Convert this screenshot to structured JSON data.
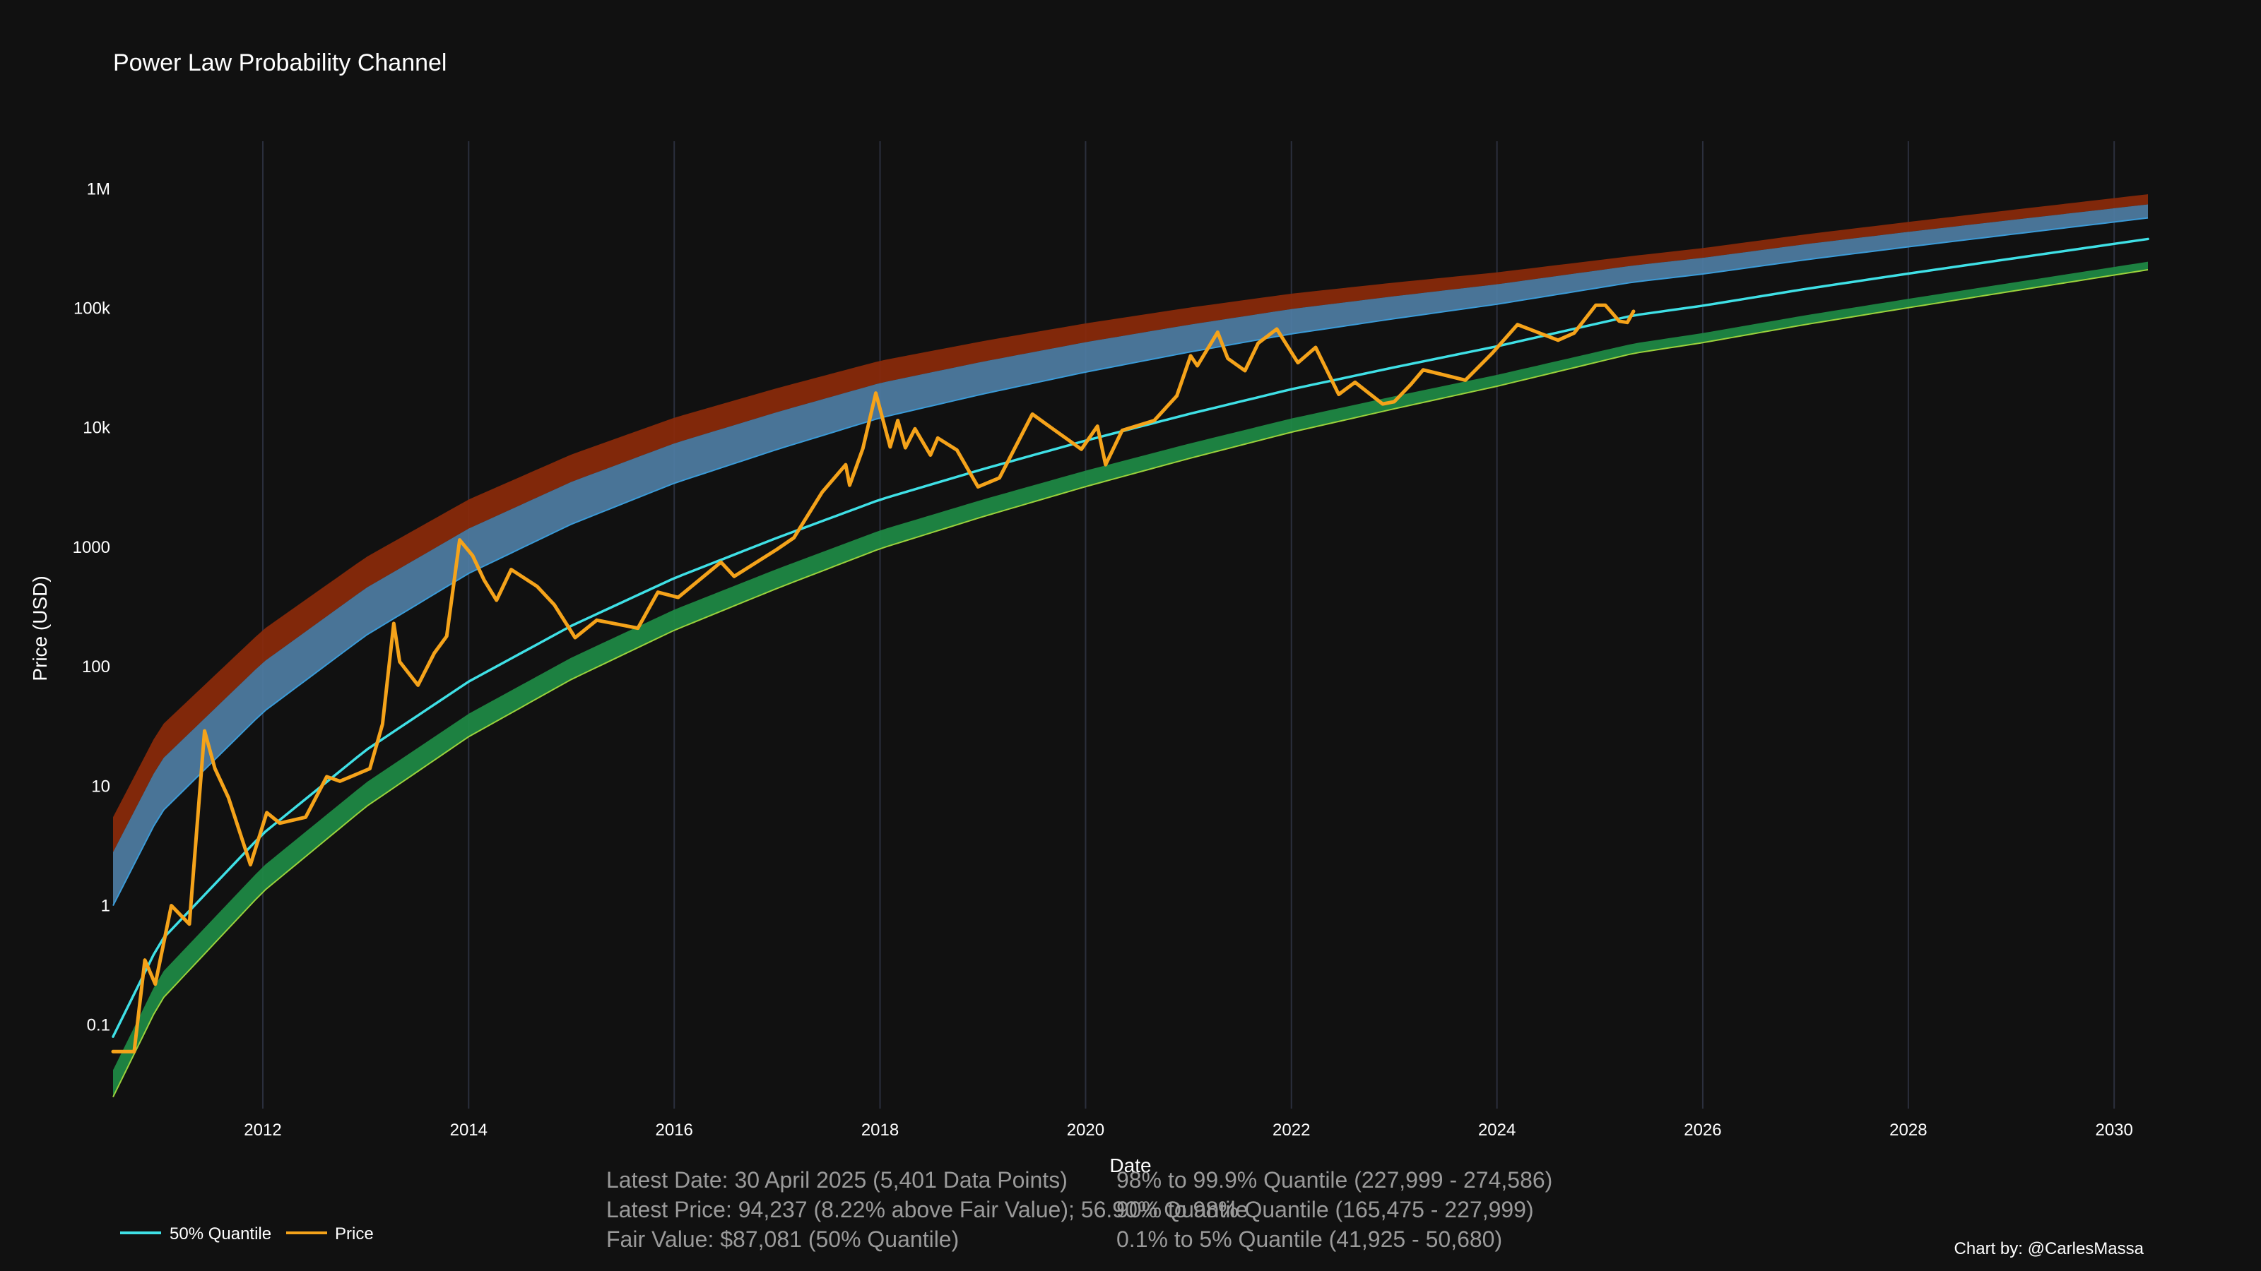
{
  "chart_data": {
    "type": "line",
    "title": "Power Law Probability Channel",
    "xlabel": "Date",
    "ylabel": "Price (USD)",
    "y_scale": "log",
    "xlim": [
      "2010-07-18",
      "2030-05-01"
    ],
    "ylim": [
      0.02,
      2500000
    ],
    "x_ticks": [
      "2012",
      "2014",
      "2016",
      "2018",
      "2020",
      "2022",
      "2024",
      "2026",
      "2028",
      "2030"
    ],
    "y_ticks": [
      {
        "value": 0.1,
        "label": "0.1"
      },
      {
        "value": 1,
        "label": "1"
      },
      {
        "value": 10,
        "label": "10"
      },
      {
        "value": 100,
        "label": "100"
      },
      {
        "value": 1000,
        "label": "1000"
      },
      {
        "value": 10000,
        "label": "10k"
      },
      {
        "value": 100000,
        "label": "100k"
      },
      {
        "value": 1000000,
        "label": "1M"
      }
    ],
    "grid": "vertical",
    "legend_position": "bottom-left",
    "quantile_bands": [
      {
        "label": "98% to 99.9% Quantile",
        "color": "#8B2A0A",
        "lower": [
          {
            "x": "2010-07-18",
            "y": 2.8
          },
          {
            "x": "2025-04-30",
            "y": 227999
          },
          {
            "x": "2030-05-01",
            "y": 740000
          }
        ],
        "upper": [
          {
            "x": "2010-07-18",
            "y": 5.5
          },
          {
            "x": "2025-04-30",
            "y": 274586
          },
          {
            "x": "2030-05-01",
            "y": 900000
          }
        ]
      },
      {
        "label": "90% to 98% Quantile",
        "color": "#4E7DA3",
        "lower": [
          {
            "x": "2010-07-18",
            "y": 1.0
          },
          {
            "x": "2025-04-30",
            "y": 165475
          },
          {
            "x": "2030-05-01",
            "y": 570000
          }
        ],
        "upper": [
          {
            "x": "2010-07-18",
            "y": 2.8
          },
          {
            "x": "2025-04-30",
            "y": 227999
          },
          {
            "x": "2030-05-01",
            "y": 740000
          }
        ]
      },
      {
        "label": "0.1% to 5% Quantile",
        "color": "#1E8B45",
        "lower": [
          {
            "x": "2010-07-18",
            "y": 0.025
          },
          {
            "x": "2025-04-30",
            "y": 41925
          },
          {
            "x": "2030-05-01",
            "y": 210000
          }
        ],
        "upper": [
          {
            "x": "2010-07-18",
            "y": 0.042
          },
          {
            "x": "2025-04-30",
            "y": 50680
          },
          {
            "x": "2030-05-01",
            "y": 245000
          }
        ]
      }
    ],
    "series": [
      {
        "name": "50% Quantile",
        "color": "#3FE0E6",
        "points": [
          {
            "x": "2010-07-18",
            "y": 0.08
          },
          {
            "x": "2011-01-01",
            "y": 0.5
          },
          {
            "x": "2012-01-01",
            "y": 4
          },
          {
            "x": "2013-01-01",
            "y": 20
          },
          {
            "x": "2014-01-01",
            "y": 75
          },
          {
            "x": "2015-01-01",
            "y": 220
          },
          {
            "x": "2016-01-01",
            "y": 550
          },
          {
            "x": "2017-01-01",
            "y": 1200
          },
          {
            "x": "2018-01-01",
            "y": 2500
          },
          {
            "x": "2019-01-01",
            "y": 4500
          },
          {
            "x": "2020-01-01",
            "y": 7800
          },
          {
            "x": "2021-01-01",
            "y": 13000
          },
          {
            "x": "2022-01-01",
            "y": 21000
          },
          {
            "x": "2023-01-01",
            "y": 32000
          },
          {
            "x": "2024-01-01",
            "y": 48000
          },
          {
            "x": "2025-04-30",
            "y": 87081
          },
          {
            "x": "2026-01-01",
            "y": 105000
          },
          {
            "x": "2027-01-01",
            "y": 145000
          },
          {
            "x": "2028-01-01",
            "y": 195000
          },
          {
            "x": "2029-01-01",
            "y": 260000
          },
          {
            "x": "2030-05-01",
            "y": 380000
          }
        ]
      },
      {
        "name": "Price",
        "color": "#F5A31A",
        "points": [
          {
            "x": "2010-07-18",
            "y": 0.06
          },
          {
            "x": "2010-10-01",
            "y": 0.06
          },
          {
            "x": "2010-11-08",
            "y": 0.35
          },
          {
            "x": "2010-12-15",
            "y": 0.22
          },
          {
            "x": "2011-02-10",
            "y": 1.0
          },
          {
            "x": "2011-04-15",
            "y": 0.7
          },
          {
            "x": "2011-06-08",
            "y": 29
          },
          {
            "x": "2011-07-15",
            "y": 14
          },
          {
            "x": "2011-09-01",
            "y": 8
          },
          {
            "x": "2011-11-18",
            "y": 2.2
          },
          {
            "x": "2012-01-15",
            "y": 6
          },
          {
            "x": "2012-03-01",
            "y": 4.9
          },
          {
            "x": "2012-06-01",
            "y": 5.5
          },
          {
            "x": "2012-08-15",
            "y": 12
          },
          {
            "x": "2012-10-01",
            "y": 11
          },
          {
            "x": "2013-01-15",
            "y": 14
          },
          {
            "x": "2013-03-01",
            "y": 33
          },
          {
            "x": "2013-04-10",
            "y": 230
          },
          {
            "x": "2013-05-01",
            "y": 110
          },
          {
            "x": "2013-07-05",
            "y": 70
          },
          {
            "x": "2013-09-01",
            "y": 130
          },
          {
            "x": "2013-10-15",
            "y": 180
          },
          {
            "x": "2013-11-30",
            "y": 1150
          },
          {
            "x": "2014-01-15",
            "y": 850
          },
          {
            "x": "2014-02-25",
            "y": 530
          },
          {
            "x": "2014-04-10",
            "y": 360
          },
          {
            "x": "2014-06-01",
            "y": 650
          },
          {
            "x": "2014-09-01",
            "y": 470
          },
          {
            "x": "2014-11-01",
            "y": 330
          },
          {
            "x": "2015-01-14",
            "y": 175
          },
          {
            "x": "2015-04-01",
            "y": 245
          },
          {
            "x": "2015-08-25",
            "y": 210
          },
          {
            "x": "2015-11-04",
            "y": 420
          },
          {
            "x": "2016-01-15",
            "y": 380
          },
          {
            "x": "2016-06-15",
            "y": 750
          },
          {
            "x": "2016-08-01",
            "y": 570
          },
          {
            "x": "2016-12-31",
            "y": 960
          },
          {
            "x": "2017-03-01",
            "y": 1200
          },
          {
            "x": "2017-06-10",
            "y": 2900
          },
          {
            "x": "2017-09-01",
            "y": 4900
          },
          {
            "x": "2017-09-15",
            "y": 3300
          },
          {
            "x": "2017-11-01",
            "y": 6700
          },
          {
            "x": "2017-12-17",
            "y": 19500
          },
          {
            "x": "2018-02-06",
            "y": 6900
          },
          {
            "x": "2018-03-05",
            "y": 11500
          },
          {
            "x": "2018-04-01",
            "y": 6800
          },
          {
            "x": "2018-05-05",
            "y": 9800
          },
          {
            "x": "2018-06-29",
            "y": 5900
          },
          {
            "x": "2018-07-25",
            "y": 8200
          },
          {
            "x": "2018-10-01",
            "y": 6500
          },
          {
            "x": "2018-12-15",
            "y": 3200
          },
          {
            "x": "2019-03-01",
            "y": 3800
          },
          {
            "x": "2019-06-26",
            "y": 13000
          },
          {
            "x": "2019-09-01",
            "y": 10000
          },
          {
            "x": "2019-12-17",
            "y": 6600
          },
          {
            "x": "2020-02-12",
            "y": 10300
          },
          {
            "x": "2020-03-12",
            "y": 4900
          },
          {
            "x": "2020-05-10",
            "y": 9500
          },
          {
            "x": "2020-09-01",
            "y": 11500
          },
          {
            "x": "2020-11-20",
            "y": 18500
          },
          {
            "x": "2021-01-08",
            "y": 40000
          },
          {
            "x": "2021-02-01",
            "y": 33000
          },
          {
            "x": "2021-04-14",
            "y": 63000
          },
          {
            "x": "2021-05-20",
            "y": 38000
          },
          {
            "x": "2021-07-20",
            "y": 30000
          },
          {
            "x": "2021-09-05",
            "y": 51000
          },
          {
            "x": "2021-11-10",
            "y": 67000
          },
          {
            "x": "2022-01-24",
            "y": 35000
          },
          {
            "x": "2022-03-28",
            "y": 47000
          },
          {
            "x": "2022-06-18",
            "y": 19000
          },
          {
            "x": "2022-08-15",
            "y": 24000
          },
          {
            "x": "2022-11-21",
            "y": 15800
          },
          {
            "x": "2023-01-01",
            "y": 16500
          },
          {
            "x": "2023-03-01",
            "y": 23000
          },
          {
            "x": "2023-04-14",
            "y": 30500
          },
          {
            "x": "2023-09-11",
            "y": 25000
          },
          {
            "x": "2023-12-15",
            "y": 42000
          },
          {
            "x": "2024-03-14",
            "y": 73000
          },
          {
            "x": "2024-08-05",
            "y": 54000
          },
          {
            "x": "2024-10-01",
            "y": 62000
          },
          {
            "x": "2024-12-17",
            "y": 106000
          },
          {
            "x": "2025-01-20",
            "y": 106000
          },
          {
            "x": "2025-03-10",
            "y": 78000
          },
          {
            "x": "2025-04-08",
            "y": 76000
          },
          {
            "x": "2025-04-30",
            "y": 94237
          }
        ]
      }
    ],
    "legend": [
      {
        "label": "50% Quantile",
        "color": "#3FE0E6"
      },
      {
        "label": "Price",
        "color": "#F5A31A"
      }
    ]
  },
  "info": {
    "left": [
      "Latest Date: 30 April 2025 (5,401 Data Points)",
      "Latest Price: 94,237 (8.22% above Fair Value); 56.90% Quantile",
      "Fair Value: $87,081 (50% Quantile)"
    ],
    "right": [
      "98% to 99.9% Quantile (227,999 - 274,586)",
      "90% to 98% Quantile (165,475 - 227,999)",
      "0.1% to 5% Quantile (41,925 - 50,680)"
    ]
  },
  "credit": "Chart by: @CarlesMassa"
}
